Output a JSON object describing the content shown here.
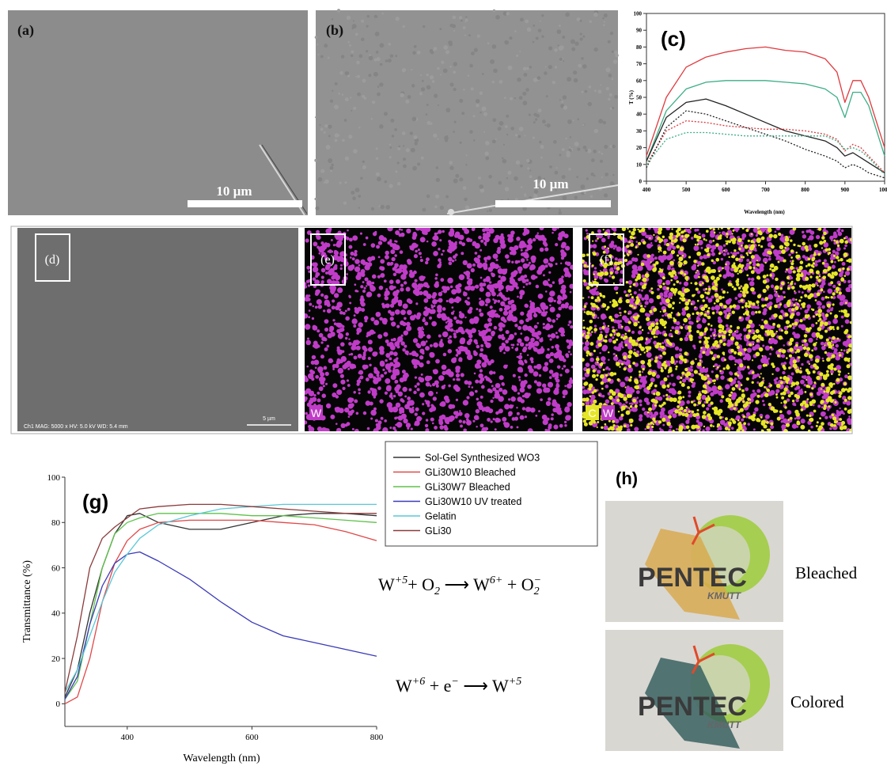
{
  "chart_data": [
    {
      "type": "line",
      "label": "(c)",
      "ylabel": "T (%)",
      "xlabel": "Wavelength (nm)",
      "x": [
        400,
        450,
        500,
        550,
        600,
        650,
        700,
        750,
        800,
        850,
        880,
        900,
        920,
        940,
        960,
        1000
      ],
      "xlim": [
        400,
        1000
      ],
      "ylim": [
        0,
        100
      ],
      "xticks": [
        400,
        500,
        600,
        700,
        800,
        900,
        1000
      ],
      "yticks": [
        0,
        10,
        20,
        30,
        40,
        50,
        60,
        70,
        80,
        90,
        100
      ],
      "series": [
        {
          "color": "#e0393e",
          "style": "solid",
          "values": [
            15,
            50,
            68,
            74,
            77,
            79,
            80,
            78,
            77,
            73,
            65,
            47,
            60,
            60,
            50,
            20
          ]
        },
        {
          "color": "#3cae85",
          "style": "solid",
          "values": [
            12,
            42,
            55,
            59,
            60,
            60,
            60,
            59,
            58,
            55,
            50,
            38,
            53,
            53,
            45,
            15
          ]
        },
        {
          "color": "#222222",
          "style": "solid",
          "values": [
            12,
            38,
            47,
            49,
            45,
            40,
            35,
            30,
            27,
            24,
            20,
            15,
            17,
            14,
            11,
            5
          ]
        },
        {
          "color": "#e0393e",
          "style": "dotted",
          "values": [
            10,
            30,
            36,
            35,
            33,
            32,
            31,
            31,
            30,
            28,
            25,
            18,
            22,
            20,
            15,
            5
          ]
        },
        {
          "color": "#222222",
          "style": "dotted",
          "values": [
            8,
            32,
            42,
            40,
            36,
            32,
            28,
            24,
            19,
            15,
            12,
            8,
            10,
            8,
            5,
            2
          ]
        },
        {
          "color": "#3cae85",
          "style": "dotted",
          "values": [
            10,
            25,
            29,
            29,
            28,
            27,
            27,
            27,
            27,
            27,
            24,
            19,
            20,
            18,
            14,
            4
          ]
        }
      ]
    },
    {
      "type": "line",
      "label": "(g)",
      "ylabel": "Transmittance (%)",
      "xlabel": "Wavelength (nm)",
      "x": [
        300,
        320,
        340,
        360,
        380,
        400,
        420,
        450,
        500,
        550,
        600,
        650,
        700,
        750,
        800
      ],
      "xlim": [
        300,
        800
      ],
      "ylim": [
        -10,
        100
      ],
      "xticks": [
        400,
        600,
        800
      ],
      "yticks": [
        0,
        20,
        40,
        60,
        80,
        100
      ],
      "series": [
        {
          "name": "Sol-Gel Synthesized WO3",
          "color": "#333333",
          "style": "solid",
          "values": [
            3,
            15,
            40,
            60,
            75,
            83,
            84,
            80,
            77,
            77,
            80,
            83,
            84,
            84,
            83
          ]
        },
        {
          "name": "GLi30W10 Bleached",
          "color": "#e04848",
          "style": "solid",
          "values": [
            0,
            3,
            20,
            45,
            62,
            72,
            77,
            80,
            81,
            81,
            81,
            80,
            79,
            76,
            72
          ]
        },
        {
          "name": "GLi30W7  Bleached",
          "color": "#5ec24a",
          "style": "solid",
          "values": [
            2,
            10,
            35,
            60,
            75,
            80,
            82,
            84,
            84,
            84,
            83,
            83,
            82,
            81,
            80
          ]
        },
        {
          "name": "GLi30W10 UV treated",
          "color": "#3a3ab8",
          "style": "solid",
          "values": [
            2,
            12,
            35,
            52,
            62,
            66,
            67,
            63,
            55,
            45,
            36,
            30,
            27,
            24,
            21
          ]
        },
        {
          "name": "Gelatin",
          "color": "#5ac8d8",
          "style": "solid",
          "values": [
            5,
            15,
            30,
            45,
            58,
            66,
            73,
            79,
            83,
            86,
            87,
            88,
            88,
            88,
            88
          ]
        },
        {
          "name": "GLi30",
          "color": "#8b3a3a",
          "style": "solid",
          "values": [
            5,
            30,
            60,
            73,
            78,
            82,
            86,
            87,
            88,
            88,
            87,
            86,
            85,
            84,
            84
          ]
        }
      ]
    }
  ],
  "figure": {
    "a": {
      "label": "(a)",
      "scale": "10 µm"
    },
    "b": {
      "label": "(b)",
      "scale": "10 µm"
    },
    "d": {
      "label": "(d)",
      "info": "Ch1  MAG: 5000 x  HV: 5.0 kV  WD: 5.4 mm",
      "scale": "5 µm"
    },
    "e": {
      "label": "(e)",
      "elements": [
        "W"
      ]
    },
    "f": {
      "label": "(f)",
      "elements": [
        "C",
        "W"
      ]
    },
    "equations": [
      [
        {
          "base": "W"
        },
        {
          "sup": "+5"
        },
        {
          "base": "+ O"
        },
        {
          "sub": "2"
        },
        {
          "base": " ⟶ W"
        },
        {
          "sup": "6+"
        },
        {
          "base": " + O"
        },
        {
          "sub": "2"
        },
        {
          "sup": "−"
        }
      ],
      [
        {
          "base": "W"
        },
        {
          "sup": "+6"
        },
        {
          "base": " + e"
        },
        {
          "sup": "−"
        },
        {
          "base": " ⟶ W"
        },
        {
          "sup": "+5"
        }
      ]
    ],
    "h": {
      "label": "(h)",
      "photos": [
        {
          "logo": "PENTEC",
          "sub": "KMUTT",
          "caption": "Bleached"
        },
        {
          "logo": "PENTEC",
          "sub": "KMUTT",
          "caption": "Colored"
        }
      ]
    }
  }
}
